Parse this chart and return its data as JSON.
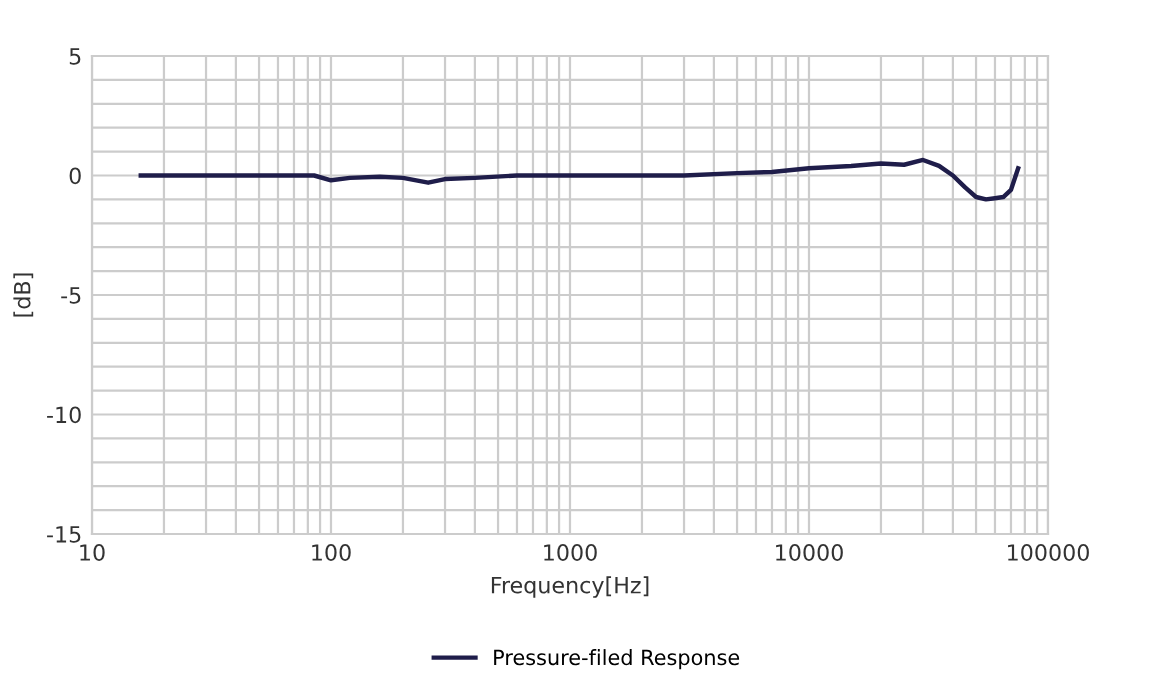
{
  "chart_data": {
    "type": "line",
    "log": "x",
    "xlabel": "Frequency[Hz]",
    "ylabel": "[dB]",
    "xlim": [
      10,
      100000
    ],
    "ylim": [
      -15,
      5
    ],
    "xticks": [
      10,
      {
        "value": 20,
        "label": null
      },
      {
        "value": 30,
        "label": null
      },
      {
        "value": 40,
        "label": null
      },
      {
        "value": 50,
        "label": null
      },
      {
        "value": 60,
        "label": null
      },
      {
        "value": 70,
        "label": null
      },
      {
        "value": 80,
        "label": null
      },
      {
        "value": 90,
        "label": null
      },
      100,
      {
        "value": 200,
        "label": null
      },
      {
        "value": 300,
        "label": null
      },
      {
        "value": 400,
        "label": null
      },
      {
        "value": 500,
        "label": null
      },
      {
        "value": 600,
        "label": null
      },
      {
        "value": 700,
        "label": null
      },
      {
        "value": 800,
        "label": null
      },
      {
        "value": 900,
        "label": null
      },
      1000,
      {
        "value": 2000,
        "label": null
      },
      {
        "value": 3000,
        "label": null
      },
      {
        "value": 4000,
        "label": null
      },
      {
        "value": 5000,
        "label": null
      },
      {
        "value": 6000,
        "label": null
      },
      {
        "value": 7000,
        "label": null
      },
      {
        "value": 8000,
        "label": null
      },
      {
        "value": 9000,
        "label": null
      },
      10000,
      {
        "value": 20000,
        "label": null
      },
      {
        "value": 30000,
        "label": null
      },
      {
        "value": 40000,
        "label": null
      },
      {
        "value": 50000,
        "label": null
      },
      {
        "value": 60000,
        "label": null
      },
      {
        "value": 70000,
        "label": null
      },
      {
        "value": 80000,
        "label": null
      },
      {
        "value": 90000,
        "label": null
      },
      100000
    ],
    "yticks": [
      -15,
      {
        "value": -14,
        "label": null
      },
      {
        "value": -13,
        "label": null
      },
      {
        "value": -12,
        "label": null
      },
      {
        "value": -11,
        "label": null
      },
      -10,
      {
        "value": -9,
        "label": null
      },
      {
        "value": -8,
        "label": null
      },
      {
        "value": -7,
        "label": null
      },
      {
        "value": -6,
        "label": null
      },
      -5,
      {
        "value": -4,
        "label": null
      },
      {
        "value": -3,
        "label": null
      },
      {
        "value": -2,
        "label": null
      },
      {
        "value": -1,
        "label": null
      },
      0,
      {
        "value": 1,
        "label": null
      },
      {
        "value": 2,
        "label": null
      },
      {
        "value": 3,
        "label": null
      },
      {
        "value": 4,
        "label": null
      },
      5
    ],
    "grid": true,
    "legend": "bottom",
    "marker": "none",
    "line_style": "solid",
    "series": [
      {
        "name": "Pressure-filed Response",
        "color": "#1f1d4a",
        "x": [
          16,
          30,
          50,
          70,
          85,
          100,
          120,
          160,
          200,
          255,
          300,
          400,
          600,
          1000,
          2000,
          3000,
          5000,
          7000,
          10000,
          15000,
          20000,
          25000,
          30000,
          35000,
          40000,
          45000,
          50000,
          55000,
          60000,
          65000,
          70000,
          75000
        ],
        "values": [
          0,
          0,
          0,
          0,
          0,
          -0.2,
          -0.1,
          -0.05,
          -0.1,
          -0.3,
          -0.15,
          -0.1,
          0,
          0,
          0,
          0,
          0.1,
          0.15,
          0.3,
          0.4,
          0.5,
          0.45,
          0.65,
          0.4,
          0,
          -0.5,
          -0.9,
          -1,
          -0.95,
          -0.9,
          -0.6,
          0.3
        ]
      }
    ]
  }
}
